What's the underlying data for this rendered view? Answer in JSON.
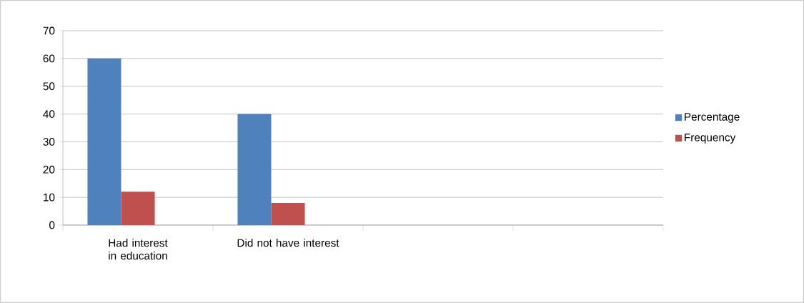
{
  "chart_data": {
    "type": "bar",
    "categories": [
      "Had interest in education",
      "Did not have interest",
      null,
      null
    ],
    "series": [
      {
        "name": "Percentage",
        "color": "#4f81bd",
        "values": [
          60,
          40,
          null,
          null
        ]
      },
      {
        "name": "Frequency",
        "color": "#c0504d",
        "values": [
          12,
          8,
          null,
          null
        ]
      }
    ],
    "ylim": [
      0,
      70
    ],
    "yticks": [
      0,
      10,
      20,
      30,
      40,
      50,
      60,
      70
    ],
    "grid": "y",
    "legend": "right"
  }
}
